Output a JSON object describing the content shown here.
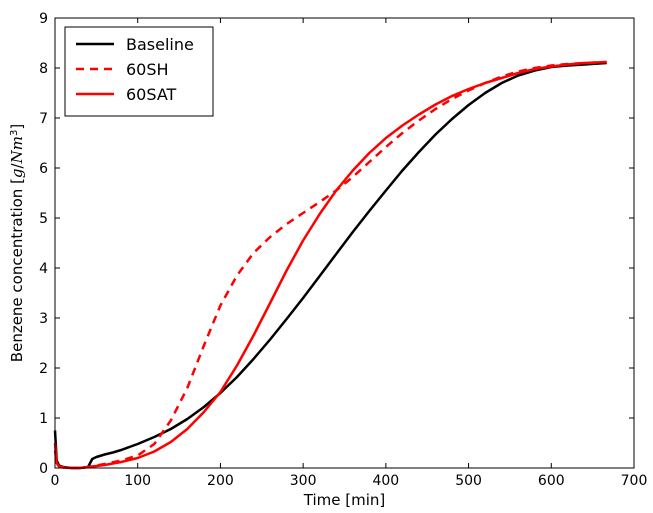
{
  "chart_data": {
    "type": "line",
    "xlabel": "Time [min]",
    "ylabel_prefix": "Benzene concentration [",
    "ylabel_unit_g": "g",
    "ylabel_unit_slash": "/",
    "ylabel_unit_N": "Nm",
    "ylabel_unit_exp": "3",
    "ylabel_suffix": "]",
    "xlim": [
      0,
      700
    ],
    "ylim": [
      0,
      9
    ],
    "xticks": [
      0,
      100,
      200,
      300,
      400,
      500,
      600,
      700
    ],
    "yticks": [
      0,
      1,
      2,
      3,
      4,
      5,
      6,
      7,
      8,
      9
    ],
    "grid": false,
    "legend_position": "top-left",
    "series": [
      {
        "name": "Baseline",
        "color": "#000000",
        "dash": "solid",
        "x": [
          0,
          2,
          5,
          10,
          20,
          30,
          40,
          45,
          50,
          60,
          70,
          80,
          90,
          100,
          120,
          140,
          160,
          180,
          200,
          220,
          240,
          260,
          280,
          300,
          320,
          340,
          360,
          380,
          400,
          420,
          440,
          460,
          480,
          500,
          520,
          540,
          560,
          580,
          600,
          620,
          640,
          667
        ],
        "y": [
          0.75,
          0.15,
          0.05,
          0.02,
          0.0,
          0.0,
          0.02,
          0.18,
          0.22,
          0.27,
          0.31,
          0.36,
          0.42,
          0.48,
          0.62,
          0.78,
          0.98,
          1.22,
          1.5,
          1.82,
          2.18,
          2.57,
          2.98,
          3.4,
          3.84,
          4.28,
          4.72,
          5.14,
          5.55,
          5.95,
          6.32,
          6.67,
          6.98,
          7.26,
          7.5,
          7.7,
          7.85,
          7.95,
          8.02,
          8.05,
          8.07,
          8.1
        ]
      },
      {
        "name": "60SH",
        "color": "#ff0000",
        "dash": "dashed",
        "x": [
          0,
          2,
          5,
          10,
          20,
          30,
          40,
          50,
          60,
          80,
          100,
          120,
          140,
          160,
          180,
          200,
          220,
          240,
          260,
          280,
          300,
          320,
          340,
          360,
          380,
          400,
          420,
          440,
          460,
          480,
          500,
          520,
          540,
          560,
          580,
          600,
          620,
          640,
          667
        ],
        "y": [
          0.35,
          0.1,
          0.03,
          0.01,
          0.0,
          0.0,
          0.02,
          0.05,
          0.08,
          0.15,
          0.25,
          0.48,
          0.95,
          1.6,
          2.45,
          3.25,
          3.85,
          4.3,
          4.62,
          4.88,
          5.1,
          5.32,
          5.55,
          5.82,
          6.12,
          6.42,
          6.7,
          6.95,
          7.18,
          7.38,
          7.55,
          7.7,
          7.83,
          7.93,
          8.0,
          8.05,
          8.08,
          8.1,
          8.12
        ]
      },
      {
        "name": "60SAT",
        "color": "#ff0000",
        "dash": "solid",
        "x": [
          0,
          2,
          5,
          10,
          20,
          30,
          40,
          50,
          60,
          80,
          100,
          120,
          140,
          160,
          180,
          200,
          220,
          240,
          260,
          280,
          300,
          320,
          340,
          360,
          380,
          400,
          420,
          440,
          460,
          480,
          500,
          520,
          540,
          560,
          580,
          600,
          620,
          640,
          667
        ],
        "y": [
          0.5,
          0.1,
          0.03,
          0.01,
          0.0,
          0.0,
          0.02,
          0.04,
          0.06,
          0.12,
          0.2,
          0.33,
          0.52,
          0.78,
          1.12,
          1.52,
          2.05,
          2.65,
          3.3,
          3.95,
          4.55,
          5.08,
          5.55,
          5.95,
          6.3,
          6.6,
          6.85,
          7.07,
          7.27,
          7.44,
          7.58,
          7.7,
          7.8,
          7.9,
          7.98,
          8.03,
          8.07,
          8.1,
          8.12
        ]
      }
    ]
  }
}
